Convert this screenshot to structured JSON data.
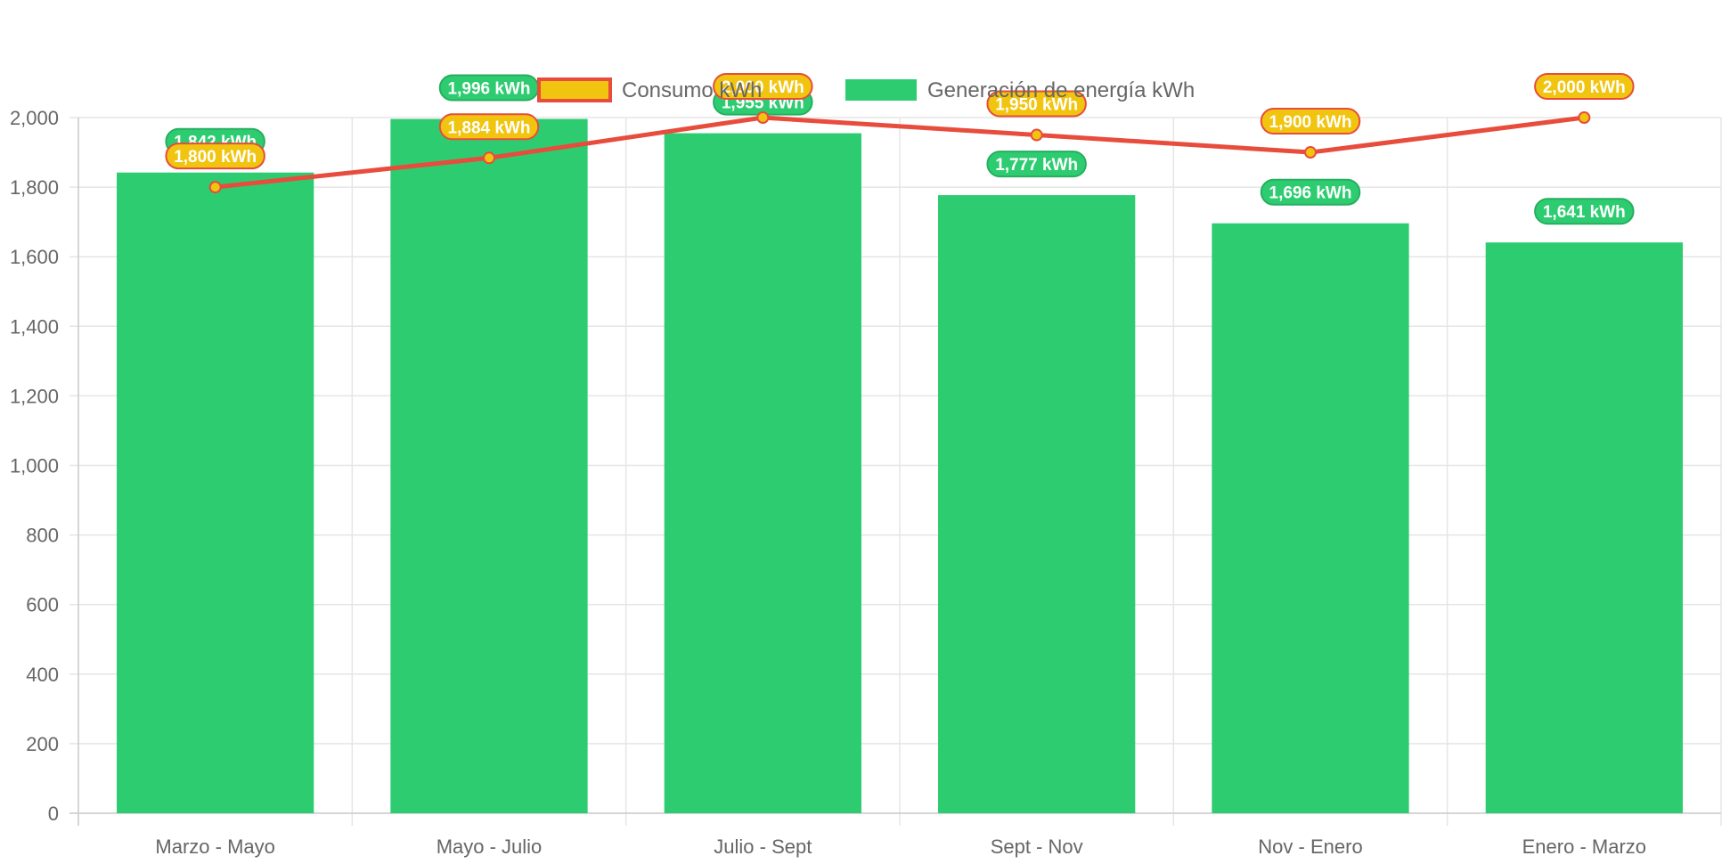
{
  "chart_data": {
    "type": "bar",
    "categories": [
      "Marzo - Mayo",
      "Mayo - Julio",
      "Julio - Sept",
      "Sept - Nov",
      "Nov - Enero",
      "Enero - Marzo"
    ],
    "series": [
      {
        "name": "Consumo kWh",
        "type": "line",
        "values": [
          1800,
          1884,
          2000,
          1950,
          1900,
          2000
        ],
        "labels": [
          "1,800 kWh",
          "1,884 kWh",
          "2,000 kWh",
          "1,950 kWh",
          "1,900 kWh",
          "2,000 kWh"
        ],
        "color": "#e74c3c",
        "point_color": "#f1c40f"
      },
      {
        "name": "Generación de energía kWh",
        "type": "bar",
        "values": [
          1842,
          1996,
          1955,
          1777,
          1696,
          1641
        ],
        "labels": [
          "1,842 kWh",
          "1,996 kWh",
          "1,955 kWh",
          "1,777 kWh",
          "1,696 kWh",
          "1,641 kWh"
        ],
        "color": "#2ecc71"
      }
    ],
    "y_ticks": [
      "0",
      "200",
      "400",
      "600",
      "800",
      "1,000",
      "1,200",
      "1,400",
      "1,600",
      "1,800",
      "2,000"
    ],
    "ylim": [
      0,
      2000
    ],
    "grid": true,
    "legend_position": "top"
  }
}
